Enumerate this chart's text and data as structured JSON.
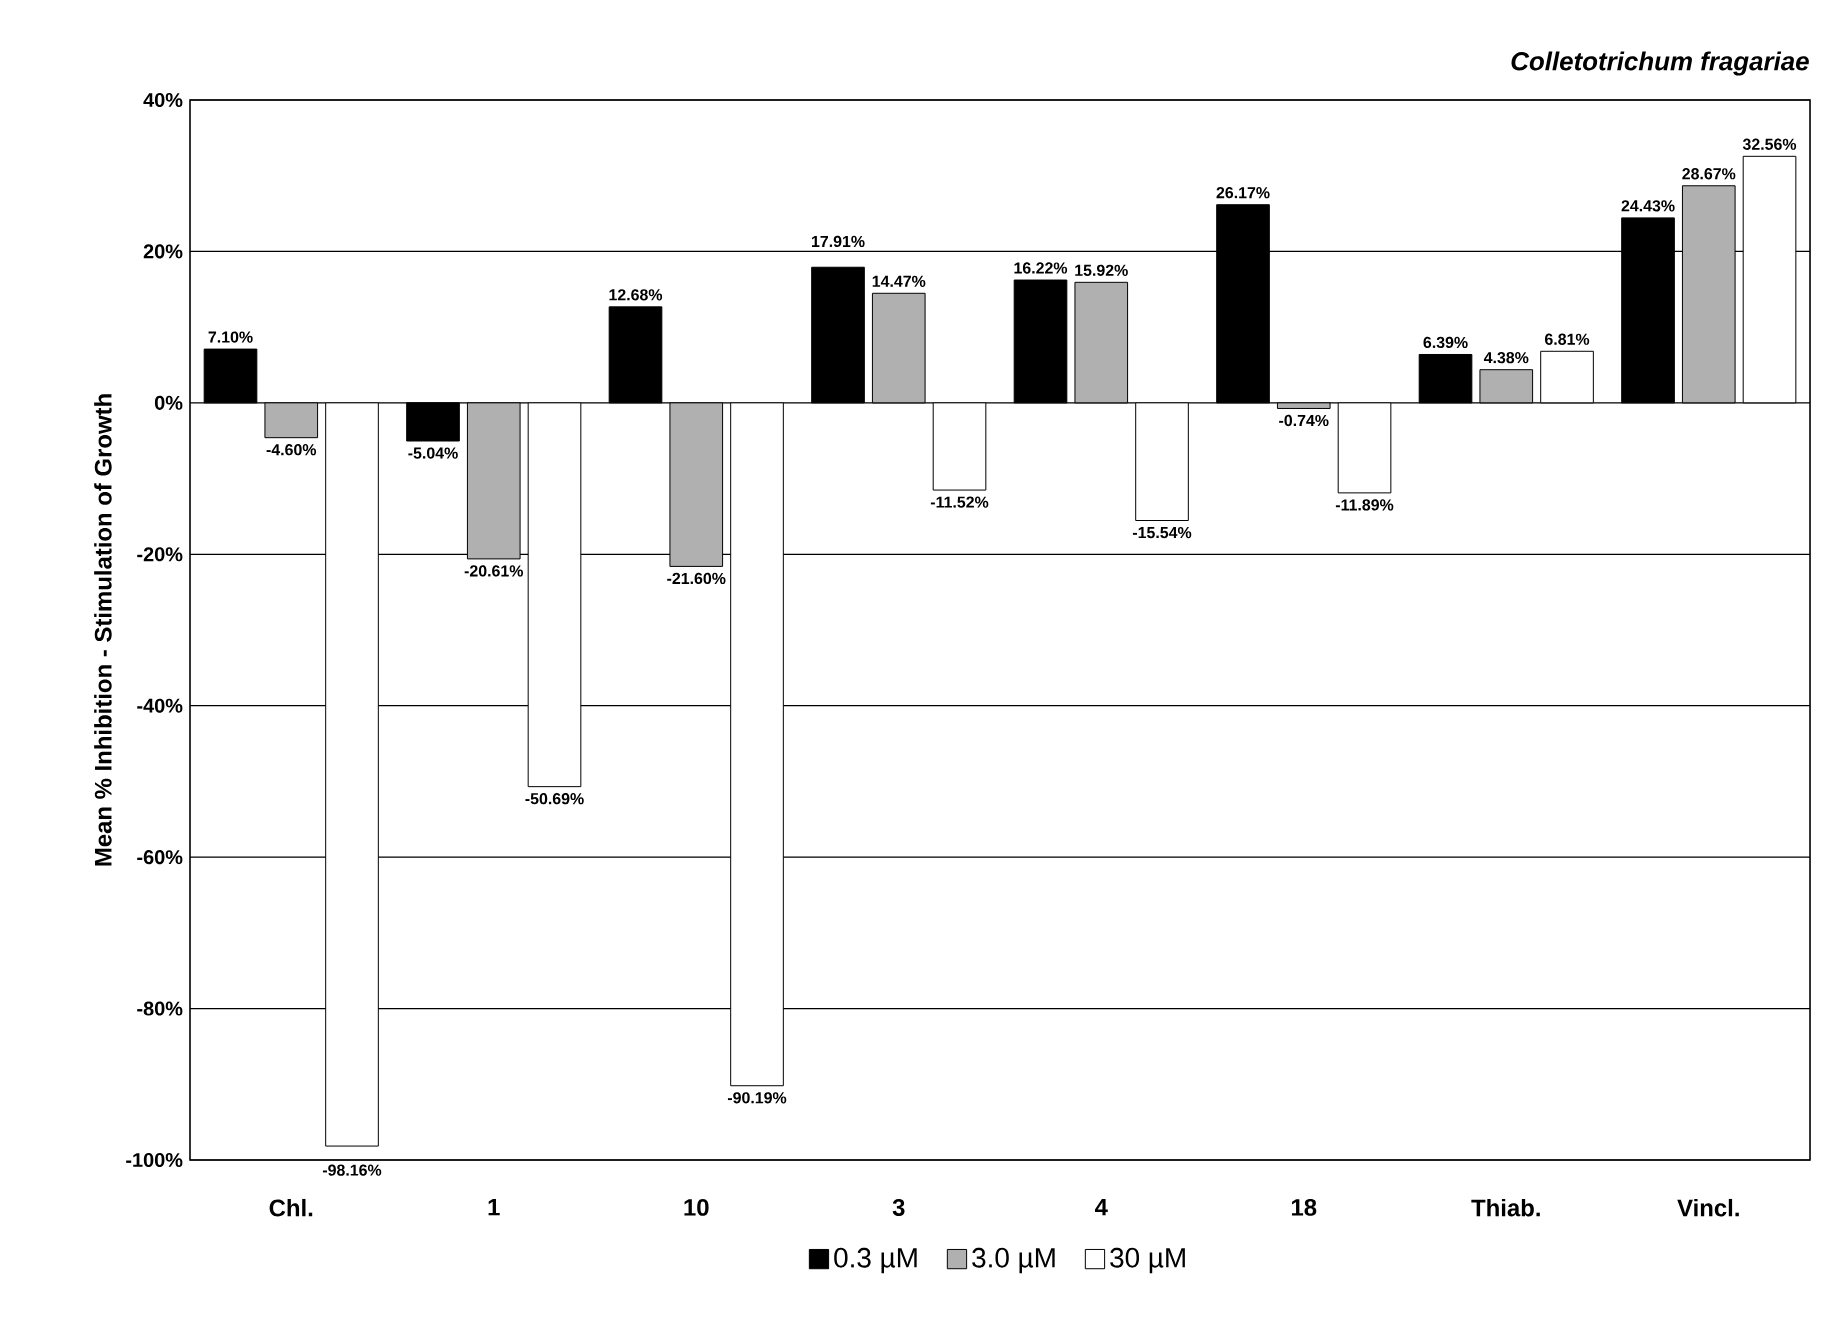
{
  "chart_data": {
    "type": "bar",
    "title": "*Colletotrichum fragariae*",
    "ylabel": "Mean % Inhibition - Stimulation of Growth",
    "categories": [
      "Chl.",
      "1",
      "10",
      "3",
      "4",
      "18",
      "Thiab.",
      "Vincl."
    ],
    "series": [
      {
        "name": "0.3 µM",
        "color": "#000000",
        "values": [
          7.1,
          -5.04,
          12.68,
          17.91,
          16.22,
          26.17,
          6.39,
          24.43
        ],
        "value_labels": [
          "7.10%",
          "-5.04%",
          "12.68%",
          "17.91%",
          "16.22%",
          "26.17%",
          "6.39%",
          "24.43%"
        ]
      },
      {
        "name": "3.0 µM",
        "color": "#b0b0b0",
        "values": [
          -4.6,
          -20.61,
          -21.6,
          14.47,
          15.92,
          -0.74,
          4.38,
          28.67
        ],
        "value_labels": [
          "-4.60%",
          "-20.61%",
          "-21.60%",
          "14.47%",
          "15.92%",
          "-0.74%",
          "4.38%",
          "28.67%"
        ]
      },
      {
        "name": "30 µM",
        "color": "#ffffff",
        "values": [
          -98.16,
          -50.69,
          -90.19,
          -11.52,
          -15.54,
          -11.89,
          6.81,
          32.56
        ],
        "value_labels": [
          "-98.16%",
          "-50.69%",
          "-90.19%",
          "-11.52%",
          "-15.54%",
          "-11.89%",
          "6.81%",
          "32.56%"
        ]
      }
    ],
    "ylim": [
      -100,
      40
    ],
    "yticks": [
      {
        "value": -100,
        "label": "-100%"
      },
      {
        "value": -80,
        "label": "-80%"
      },
      {
        "value": -60,
        "label": "-60%"
      },
      {
        "value": -40,
        "label": "-40%"
      },
      {
        "value": -20,
        "label": "-20%"
      },
      {
        "value": 0,
        "label": "0%"
      },
      {
        "value": 20,
        "label": "20%"
      },
      {
        "value": 40,
        "label": "40%"
      }
    ],
    "grid": "y",
    "legend": "bottom"
  }
}
